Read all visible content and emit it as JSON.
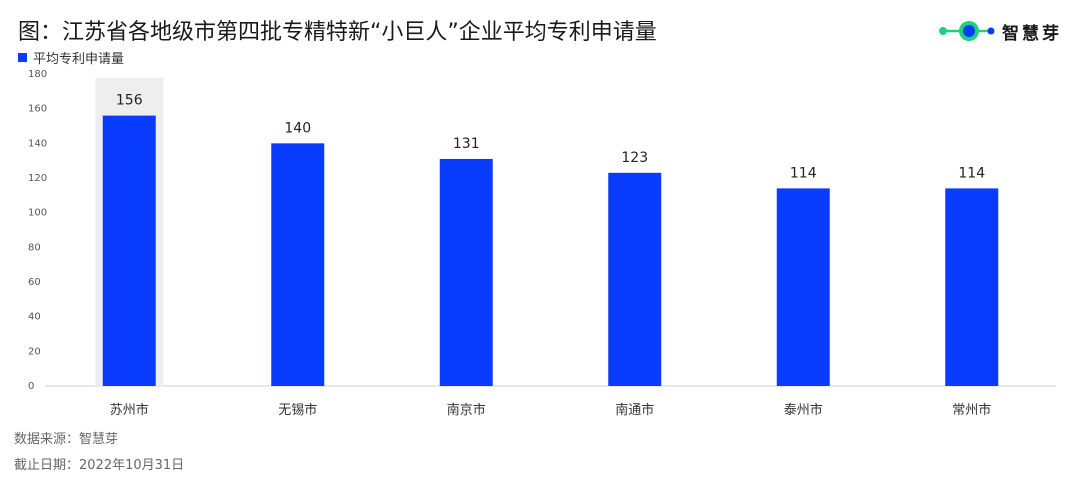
{
  "header": {
    "title": "图：江苏省各地级市第四批专精特新“小巨人”企业平均专利申请量",
    "logo_text": "智慧芽"
  },
  "colors": {
    "bar": "#0a3cff",
    "highlight_bg": "#eeeeee",
    "logo_green": "#1fd17a",
    "logo_blue": "#0a3cff"
  },
  "chart_data": {
    "type": "bar",
    "title": "图：江苏省各地级市第四批专精特新“小巨人”企业平均专利申请量",
    "categories": [
      "苏州市",
      "无锡市",
      "南京市",
      "南通市",
      "泰州市",
      "常州市"
    ],
    "series": [
      {
        "name": "平均专利申请量",
        "values": [
          156,
          140,
          131,
          123,
          114,
          114
        ]
      }
    ],
    "ylim": [
      0,
      180
    ],
    "yticks": [
      0,
      20,
      40,
      60,
      80,
      100,
      120,
      140,
      160,
      180
    ],
    "highlight_category": "苏州市",
    "legend_position": "top-left",
    "grid": false
  },
  "footer": {
    "source": "数据来源：智慧芽",
    "date": "截止日期：2022年10月31日"
  }
}
